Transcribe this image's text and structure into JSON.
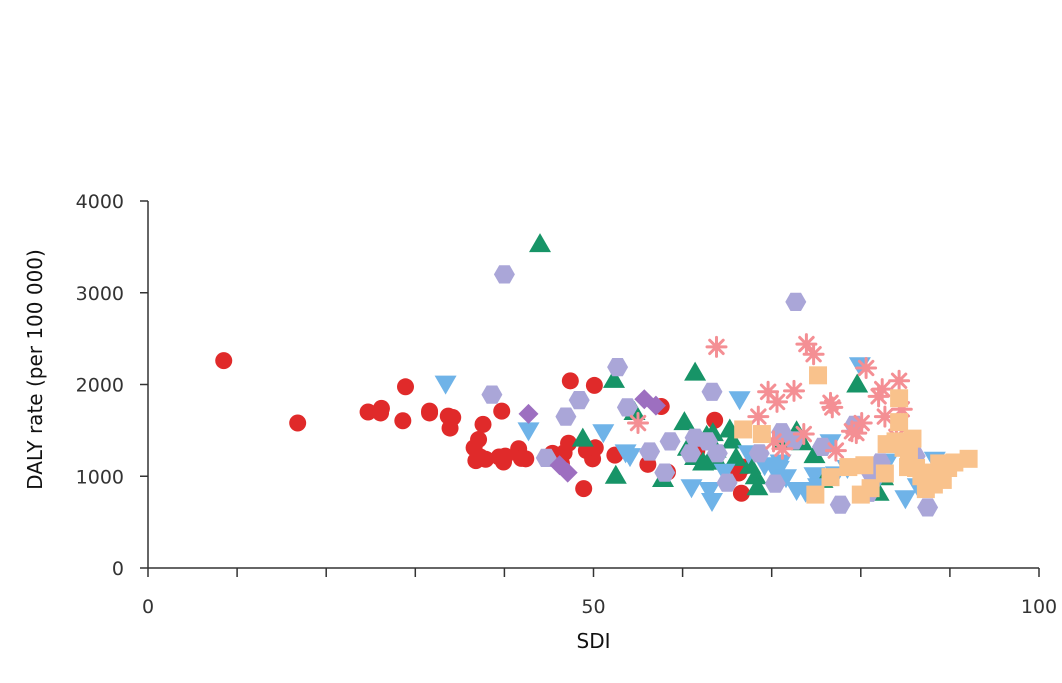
{
  "chart_data": {
    "type": "scatter",
    "title": "",
    "xlabel": "SDI",
    "ylabel": "DALY rate (per 100 000)",
    "xlim": [
      0,
      100
    ],
    "ylim": [
      0,
      4000
    ],
    "x_ticks": [
      0,
      50,
      100
    ],
    "x_tick_labels": [
      "0",
      "50",
      "100"
    ],
    "x_minor_ticks": [
      10,
      20,
      30,
      40,
      60,
      70,
      80,
      90
    ],
    "y_ticks": [
      0,
      1000,
      2000,
      3000,
      4000
    ],
    "y_tick_labels": [
      "0",
      "1000",
      "2000",
      "3000",
      "4000"
    ],
    "grid": false,
    "legend": "none",
    "series": [
      {
        "marker": "circle",
        "color": "#e02a2a",
        "points": [
          [
            8.5,
            2260
          ],
          [
            16.8,
            1580
          ],
          [
            24.7,
            1700
          ],
          [
            26.1,
            1690
          ],
          [
            26.2,
            1740
          ],
          [
            28.6,
            1605
          ],
          [
            28.9,
            1975
          ],
          [
            31.6,
            1710
          ],
          [
            31.6,
            1690
          ],
          [
            33.7,
            1655
          ],
          [
            33.9,
            1525
          ],
          [
            34.2,
            1640
          ],
          [
            36.6,
            1310
          ],
          [
            36.8,
            1170
          ],
          [
            37.1,
            1400
          ],
          [
            37.3,
            1210
          ],
          [
            37.6,
            1565
          ],
          [
            37.9,
            1185
          ],
          [
            39.4,
            1210
          ],
          [
            39.7,
            1710
          ],
          [
            39.9,
            1155
          ],
          [
            40.1,
            1220
          ],
          [
            41.6,
            1300
          ],
          [
            41.9,
            1195
          ],
          [
            42.4,
            1190
          ],
          [
            45.4,
            1250
          ],
          [
            46.4,
            1140
          ],
          [
            46.7,
            1255
          ],
          [
            47.2,
            1360
          ],
          [
            47.4,
            2040
          ],
          [
            48.9,
            865
          ],
          [
            49.2,
            1280
          ],
          [
            49.9,
            1190
          ],
          [
            50.1,
            1990
          ],
          [
            50.2,
            1310
          ],
          [
            52.4,
            1230
          ],
          [
            56.1,
            1130
          ],
          [
            57.6,
            1760
          ],
          [
            58.3,
            1045
          ],
          [
            61.6,
            1280
          ],
          [
            63.6,
            1610
          ],
          [
            66.3,
            1035
          ],
          [
            66.6,
            815
          ],
          [
            66.8,
            1100
          ]
        ]
      },
      {
        "marker": "triangle-up",
        "color": "#179467",
        "points": [
          [
            44.0,
            3530
          ],
          [
            48.8,
            1410
          ],
          [
            52.3,
            2050
          ],
          [
            52.5,
            1005
          ],
          [
            54.6,
            1700
          ],
          [
            57.8,
            970
          ],
          [
            60.2,
            1590
          ],
          [
            60.6,
            1310
          ],
          [
            61.4,
            1210
          ],
          [
            61.4,
            2130
          ],
          [
            62.3,
            1150
          ],
          [
            62.7,
            1440
          ],
          [
            63.1,
            1160
          ],
          [
            63.4,
            1470
          ],
          [
            63.7,
            1290
          ],
          [
            63.9,
            1160
          ],
          [
            65.3,
            1510
          ],
          [
            65.6,
            1390
          ],
          [
            66.0,
            1200
          ],
          [
            67.6,
            1115
          ],
          [
            68.2,
            1000
          ],
          [
            68.4,
            880
          ],
          [
            71.4,
            1380
          ],
          [
            72.8,
            1490
          ],
          [
            73.4,
            1370
          ],
          [
            74.8,
            1230
          ],
          [
            75.7,
            960
          ],
          [
            79.6,
            2000
          ],
          [
            81.2,
            860
          ],
          [
            82.0,
            820
          ],
          [
            82.5,
            990
          ]
        ]
      },
      {
        "marker": "triangle-down",
        "color": "#6fb3e8",
        "points": [
          [
            33.4,
            2010
          ],
          [
            42.7,
            1500
          ],
          [
            51.1,
            1480
          ],
          [
            53.6,
            1260
          ],
          [
            54.1,
            1220
          ],
          [
            61.0,
            880
          ],
          [
            63.0,
            850
          ],
          [
            63.3,
            730
          ],
          [
            64.7,
            1050
          ],
          [
            66.4,
            1840
          ],
          [
            67.4,
            1250
          ],
          [
            69.2,
            1120
          ],
          [
            70.2,
            1090
          ],
          [
            70.8,
            1080
          ],
          [
            71.0,
            1150
          ],
          [
            71.6,
            990
          ],
          [
            72.8,
            850
          ],
          [
            73.8,
            830
          ],
          [
            74.3,
            850
          ],
          [
            74.8,
            1010
          ],
          [
            75.2,
            890
          ],
          [
            76.6,
            1370
          ],
          [
            77.2,
            1020
          ],
          [
            78.5,
            1090
          ],
          [
            79.9,
            2210
          ],
          [
            81.6,
            920
          ],
          [
            82.0,
            1060
          ],
          [
            83.0,
            1160
          ],
          [
            85.0,
            760
          ],
          [
            86.4,
            890
          ],
          [
            88.3,
            1180
          ]
        ]
      },
      {
        "marker": "hexagon",
        "color": "#aaa6d8",
        "points": [
          [
            40.0,
            3200
          ],
          [
            38.6,
            1890
          ],
          [
            44.7,
            1200
          ],
          [
            46.9,
            1650
          ],
          [
            48.4,
            1830
          ],
          [
            52.7,
            2190
          ],
          [
            53.8,
            1750
          ],
          [
            56.3,
            1270
          ],
          [
            58.0,
            1040
          ],
          [
            58.6,
            1380
          ],
          [
            60.9,
            1250
          ],
          [
            61.4,
            1420
          ],
          [
            62.8,
            1380
          ],
          [
            63.3,
            1920
          ],
          [
            63.9,
            1250
          ],
          [
            65.0,
            930
          ],
          [
            68.6,
            1250
          ],
          [
            70.4,
            920
          ],
          [
            71.1,
            1480
          ],
          [
            72.5,
            1390
          ],
          [
            72.7,
            2900
          ],
          [
            75.7,
            1320
          ],
          [
            77.7,
            690
          ],
          [
            79.3,
            1560
          ],
          [
            80.9,
            820
          ],
          [
            81.2,
            1030
          ],
          [
            82.2,
            1150
          ],
          [
            86.1,
            1220
          ],
          [
            87.5,
            660
          ]
        ]
      },
      {
        "marker": "diamond",
        "color": "#9d6fc0",
        "points": [
          [
            42.7,
            1680
          ],
          [
            46.2,
            1120
          ],
          [
            47.1,
            1040
          ],
          [
            55.7,
            1840
          ],
          [
            57.0,
            1770
          ]
        ]
      },
      {
        "marker": "asterisk",
        "color": "#f48f94",
        "points": [
          [
            55.0,
            1580
          ],
          [
            63.8,
            2410
          ],
          [
            68.5,
            1650
          ],
          [
            69.6,
            1920
          ],
          [
            70.2,
            1380
          ],
          [
            70.6,
            1810
          ],
          [
            71.2,
            1300
          ],
          [
            72.5,
            1930
          ],
          [
            73.6,
            1460
          ],
          [
            73.9,
            2440
          ],
          [
            74.7,
            2330
          ],
          [
            76.6,
            1800
          ],
          [
            76.8,
            1750
          ],
          [
            77.2,
            1280
          ],
          [
            79.0,
            1490
          ],
          [
            79.5,
            1470
          ],
          [
            80.1,
            1580
          ],
          [
            80.6,
            2180
          ],
          [
            82.0,
            1870
          ],
          [
            82.4,
            1950
          ],
          [
            82.7,
            1650
          ],
          [
            84.0,
            1430
          ],
          [
            84.3,
            2040
          ],
          [
            84.6,
            1730
          ]
        ]
      },
      {
        "marker": "square",
        "color": "#f9c28c",
        "points": [
          [
            66.8,
            1510
          ],
          [
            68.9,
            1460
          ],
          [
            74.9,
            800
          ],
          [
            75.2,
            2100
          ],
          [
            76.6,
            990
          ],
          [
            78.6,
            1100
          ],
          [
            80.0,
            800
          ],
          [
            80.4,
            1120
          ],
          [
            81.1,
            870
          ],
          [
            82.7,
            1030
          ],
          [
            82.9,
            1350
          ],
          [
            83.9,
            1380
          ],
          [
            84.3,
            1850
          ],
          [
            84.3,
            1590
          ],
          [
            84.8,
            1310
          ],
          [
            85.3,
            1100
          ],
          [
            85.4,
            1240
          ],
          [
            85.8,
            1410
          ],
          [
            86.2,
            1090
          ],
          [
            86.8,
            1000
          ],
          [
            87.3,
            860
          ],
          [
            87.9,
            1040
          ],
          [
            88.2,
            910
          ],
          [
            88.8,
            1140
          ],
          [
            89.2,
            960
          ],
          [
            89.8,
            1090
          ],
          [
            90.5,
            1150
          ],
          [
            92.1,
            1190
          ]
        ]
      }
    ]
  }
}
